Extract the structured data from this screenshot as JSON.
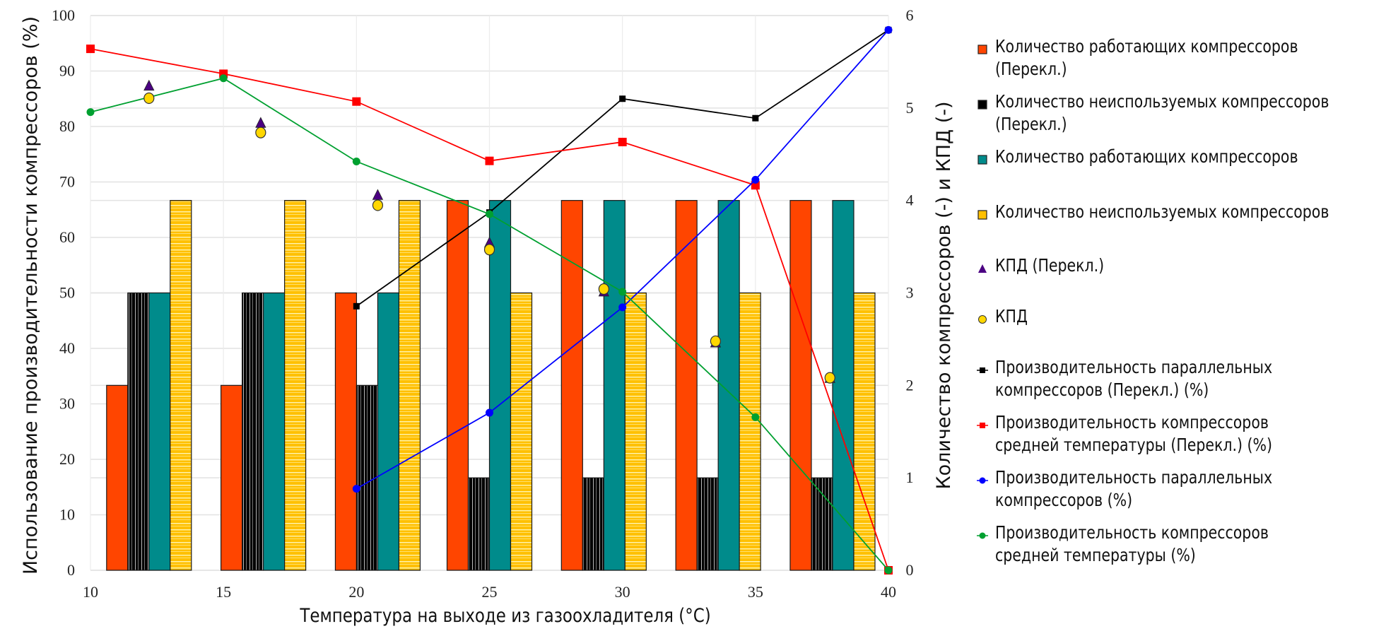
{
  "chart_data": {
    "type": "bar",
    "xlabel": "Температура на выходе из газоохладителя (°C)",
    "ylabel_left": "Использование производительности компрессоров (%)",
    "ylabel_right": "Количество компрессоров (-) и КПД (-)",
    "x_ticks": [
      "10",
      "15",
      "20",
      "25",
      "30",
      "35",
      "40"
    ],
    "xlim": [
      10,
      40
    ],
    "ylim_left": [
      0,
      100
    ],
    "ylim_right": [
      0,
      6
    ],
    "y_ticks_left": [
      "0",
      "10",
      "20",
      "30",
      "40",
      "50",
      "60",
      "70",
      "80",
      "90",
      "100"
    ],
    "y_ticks_right": [
      "0",
      "1",
      "2",
      "3",
      "4",
      "5",
      "6"
    ],
    "grid": true,
    "legend_position": "right",
    "bar_groups_x": [
      12.2,
      16.5,
      20.8,
      25.0,
      29.3,
      33.6,
      37.9
    ],
    "bar_series": [
      {
        "name": "Количество работающих компрессоров (Перекл.)",
        "color": "#ff4500",
        "values": [
          2,
          2,
          3,
          4,
          4,
          4,
          4
        ]
      },
      {
        "name": "Количество неиспользуемых компрессоров (Перекл.)",
        "color": "#000000",
        "values": [
          3,
          3,
          2,
          1,
          1,
          1,
          1
        ]
      },
      {
        "name": "Количество работающих компрессоров",
        "color": "#008b8b",
        "values": [
          3,
          3,
          3,
          4,
          4,
          4,
          4
        ]
      },
      {
        "name": "Количество неиспользуемых компрессоров",
        "color": "#ffc000",
        "values": [
          4,
          4,
          4,
          3,
          3,
          3,
          3
        ]
      }
    ],
    "scatter_series": [
      {
        "name": "КПД (Перекл.)",
        "marker": "triangle",
        "color": "#4b0082",
        "axis": "left",
        "x": [
          12.2,
          16.4,
          20.8,
          25.0,
          29.3,
          33.5,
          37.8
        ],
        "y": [
          87.3,
          80.6,
          67.6,
          59.0,
          50.2,
          41.0,
          34.6
        ]
      },
      {
        "name": "КПД",
        "marker": "circle",
        "color": "#ffd700",
        "axis": "left",
        "x": [
          12.2,
          16.4,
          20.8,
          25.0,
          29.3,
          33.5,
          37.8
        ],
        "y": [
          85.1,
          78.9,
          65.8,
          57.8,
          50.7,
          41.3,
          34.7
        ]
      }
    ],
    "line_series": [
      {
        "name": "Производительность параллельных компрессоров (Перекл.) (%)",
        "marker": "square",
        "color": "#000000",
        "x": [
          20,
          25,
          30,
          35,
          40
        ],
        "y": [
          47.6,
          64.5,
          85.0,
          81.5,
          97.4
        ]
      },
      {
        "name": "Производительность компрессоров средней температуры (Перекл.) (%)",
        "marker": "square",
        "color": "#ff0000",
        "x": [
          10,
          15,
          20,
          25,
          30,
          35,
          40
        ],
        "y": [
          94.0,
          89.5,
          84.5,
          73.8,
          77.2,
          69.4,
          0
        ]
      },
      {
        "name": "Производительность параллельных компрессоров (%)",
        "marker": "circle",
        "color": "#0000ff",
        "x": [
          20,
          25,
          30,
          35,
          40
        ],
        "y": [
          14.7,
          28.4,
          47.4,
          70.4,
          97.4
        ]
      },
      {
        "name": "Производительность компрессоров средней температуры (%)",
        "marker": "circle",
        "color": "#00a030",
        "x": [
          10,
          15,
          20,
          25,
          30,
          35,
          40
        ],
        "y": [
          82.6,
          88.7,
          73.7,
          64.2,
          50.2,
          27.6,
          0
        ]
      }
    ]
  },
  "legend": [
    {
      "label": "Количество работающих компрессоров\n(Перекл.)",
      "symbol": "bar",
      "color": "#ff4500"
    },
    {
      "label": "Количество неиспользуемых компрессоров\n(Перекл.)",
      "symbol": "bar",
      "color": "#000000"
    },
    {
      "label": "Количество работающих компрессоров",
      "symbol": "bar",
      "color": "#008b8b"
    },
    {
      "label": "Количество неиспользуемых компрессоров",
      "symbol": "bar",
      "color": "#ffc000"
    },
    {
      "label": "КПД (Перекл.)",
      "symbol": "triangle",
      "color": "#4b0082"
    },
    {
      "label": "КПД",
      "symbol": "circle",
      "color": "#ffd700"
    },
    {
      "label": "Производительность параллельных\nкомпрессоров (Перекл.) (%)",
      "symbol": "line-square",
      "color": "#000000"
    },
    {
      "label": "Производительность компрессоров\nсредней температуры (Перекл.) (%)",
      "symbol": "line-square",
      "color": "#ff0000"
    },
    {
      "label": "Производительность параллельных\nкомпрессоров (%)",
      "symbol": "line-circle",
      "color": "#0000ff"
    },
    {
      "label": "Производительность компрессоров\nсредней температуры (%)",
      "symbol": "line-circle",
      "color": "#00a030"
    }
  ]
}
